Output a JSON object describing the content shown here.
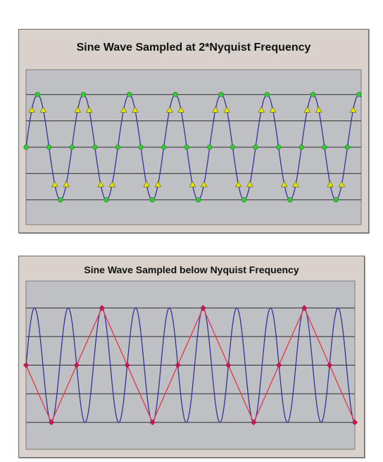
{
  "chart_data": [
    {
      "type": "line",
      "title": "Sine Wave Sampled at 2*Nyquist Frequency",
      "xlabel": "",
      "ylabel": "",
      "grid": "horizontal",
      "ylim": [
        -1.1,
        1.1
      ],
      "waves_shown": 7.3,
      "series": [
        {
          "kind": "sine",
          "color": "#33339a",
          "amplitude": 1,
          "cycles": 7.3
        },
        {
          "kind": "samples",
          "marker": "circle",
          "color": "#33cc33",
          "phases_per_cycle": [
            0,
            0.25,
            0.5,
            0.75
          ]
        },
        {
          "kind": "samples",
          "marker": "triangle",
          "color": "#e8e800",
          "phases_per_cycle": [
            0.125,
            0.375,
            0.625,
            0.875
          ]
        }
      ],
      "colors": {
        "panel": "#d9d2cc",
        "plot_bg": "#bfc0c3",
        "grid": "#2f2f2f"
      }
    },
    {
      "type": "line",
      "title": "Sine Wave Sampled below Nyquist Frequency",
      "xlabel": "",
      "ylabel": "",
      "grid": "horizontal",
      "ylim": [
        -1.1,
        1.1
      ],
      "waves_shown": 9.75,
      "series": [
        {
          "kind": "sine",
          "color": "#33339a",
          "amplitude": 1,
          "cycles": 9.75
        },
        {
          "kind": "alias",
          "color": "#e8344a",
          "marker": "diamond",
          "marker_color": "#d4145a",
          "sample_every_cycles": 0.75,
          "values": [
            0,
            -1,
            0,
            1,
            0,
            -1,
            0,
            1,
            0,
            -1,
            0,
            1,
            0,
            -1
          ]
        }
      ],
      "colors": {
        "panel": "#d9d2cc",
        "plot_bg": "#bfc0c3",
        "grid": "#2f2f2f"
      }
    }
  ]
}
